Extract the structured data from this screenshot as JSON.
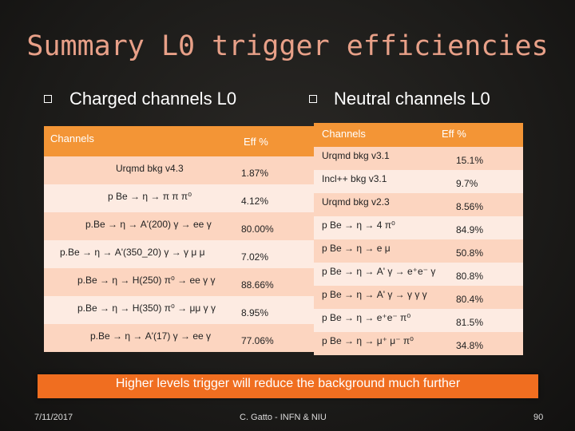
{
  "title": "Summary L0 trigger efficiencies",
  "charged": {
    "heading": "Charged channels L0",
    "col1": "Channels",
    "col2": "Eff %",
    "rows": [
      {
        "ch": "Urqmd bkg v4.3",
        "eff": "1.87%"
      },
      {
        "ch": "p Be → η → π π π⁰",
        "eff": "4.12%"
      },
      {
        "ch": "p.Be → η → A'(200) γ → ee γ",
        "eff": "80.00%"
      },
      {
        "ch": "p.Be → η → A'(350_20) γ → γ μ μ",
        "eff": "7.02%"
      },
      {
        "ch": "p.Be → η → H(250) π⁰ → ee γ γ",
        "eff": "88.66%"
      },
      {
        "ch": "p.Be → η → H(350) π⁰ → μμ γ γ",
        "eff": "8.95%"
      },
      {
        "ch": "p.Be → η → A'(17) γ → ee γ",
        "eff": "77.06%"
      }
    ]
  },
  "neutral": {
    "heading": "Neutral channels L0",
    "col1": "Channels",
    "col2": "Eff %",
    "rows": [
      {
        "ch": "Urqmd bkg v3.1",
        "eff": "15.1%"
      },
      {
        "ch": "Incl++ bkg v3.1",
        "eff": "9.7%"
      },
      {
        "ch": "Urqmd bkg v2.3",
        "eff": "8.56%"
      },
      {
        "ch": "p Be → η → 4 π⁰",
        "eff": "84.9%"
      },
      {
        "ch": "p Be → η → e μ",
        "eff": "50.8%"
      },
      {
        "ch": "p Be → η → A' γ → e⁺e⁻ γ",
        "eff": "80.8%"
      },
      {
        "ch": "p Be → η → A' γ → γ γ γ",
        "eff": "80.4%"
      },
      {
        "ch": "p Be → η → e⁺e⁻ π⁰",
        "eff": "81.5%"
      },
      {
        "ch": "p Be → η → μ⁺ μ⁻ π⁰",
        "eff": "34.8%"
      }
    ]
  },
  "banner": "Higher levels trigger will reduce the background much further",
  "footer": {
    "date": "7/11/2017",
    "author": "C. Gatto - INFN & NIU",
    "page": "90"
  },
  "colors": {
    "header": "#f39536",
    "band_a": "#fcd5c0",
    "band_b": "#fdebe2",
    "banner": "#f06e20",
    "title": "#e8a088"
  }
}
